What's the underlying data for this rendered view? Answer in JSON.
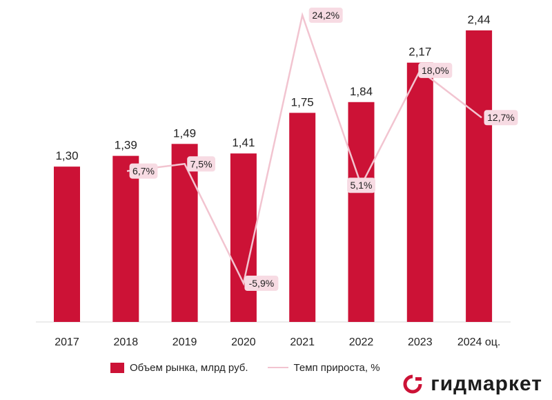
{
  "chart_data": {
    "type": "bar+line",
    "categories": [
      "2017",
      "2018",
      "2019",
      "2020",
      "2021",
      "2022",
      "2023",
      "2024 оц."
    ],
    "series": [
      {
        "name": "Объем рынка, млрд руб.",
        "kind": "bar",
        "color": "#cc1236",
        "values": [
          1.3,
          1.39,
          1.49,
          1.41,
          1.75,
          1.84,
          2.17,
          2.44
        ],
        "labels": [
          "1,30",
          "1,39",
          "1,49",
          "1,41",
          "1,75",
          "1,84",
          "2,17",
          "2,44"
        ]
      },
      {
        "name": "Темп прироста, %",
        "kind": "line",
        "color": "#f2c4d0",
        "values": [
          null,
          6.7,
          7.5,
          -5.9,
          24.2,
          5.1,
          18.0,
          12.7
        ],
        "labels": [
          "",
          "6,7%",
          "7,5%",
          "-5,9%",
          "24,2%",
          "5,1%",
          "18,0%",
          "12,7%"
        ]
      }
    ],
    "bar_axis_range": [
      0,
      2.44
    ],
    "line_axis_range": [
      -5.9,
      24.2
    ],
    "legend_position": "bottom",
    "grid": false
  },
  "legend": {
    "bar_label": "Объем рынка, млрд руб.",
    "line_label": "Темп прироста, %"
  },
  "brand": {
    "name": "гидмаркет",
    "accent_color": "#cc1236"
  }
}
